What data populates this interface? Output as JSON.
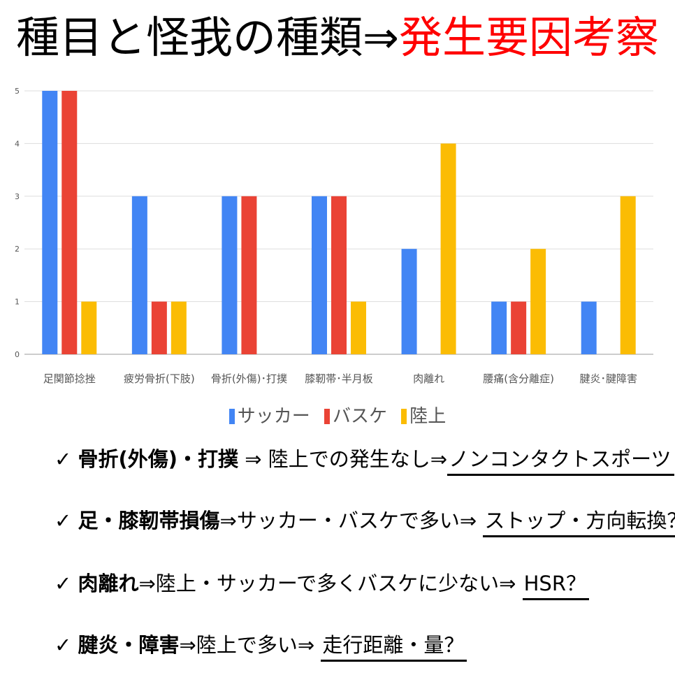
{
  "title": {
    "black": "種目と怪我の種類⇒",
    "red": "発生要因考察"
  },
  "colors": {
    "title_highlight": "#ff0000",
    "サッカー": "#4285F4",
    "バスケ": "#EA4335",
    "陸上": "#FBBC04"
  },
  "chart_data": {
    "type": "bar",
    "categories": [
      "足関節捻挫",
      "疲労骨折(下肢)",
      "骨折(外傷)･打撲",
      "膝靭帯･半月板",
      "肉離れ",
      "腰痛(含分離症)",
      "腱炎･腱障害"
    ],
    "series": [
      {
        "name": "サッカー",
        "color": "#4285F4",
        "values": [
          5,
          3,
          3,
          3,
          2,
          1,
          1
        ]
      },
      {
        "name": "バスケ",
        "color": "#EA4335",
        "values": [
          5,
          1,
          3,
          3,
          0,
          1,
          0
        ]
      },
      {
        "name": "陸上",
        "color": "#FBBC04",
        "values": [
          1,
          1,
          0,
          1,
          4,
          2,
          3
        ]
      }
    ],
    "yticks": [
      "0",
      "1",
      "2",
      "3",
      "4",
      "5"
    ],
    "ylim": [
      0,
      5
    ],
    "grid": true,
    "legend": "bottom"
  },
  "bullets": [
    {
      "check": "✓",
      "bold": "骨折(外傷)・打撲",
      "text": " ⇒ 陸上での発生なし⇒",
      "underline": "ノンコンタクトスポーツ"
    },
    {
      "check": "✓",
      "bold": "足・膝靭帯損傷",
      "text": "⇒サッカー・バスケで多い⇒ ",
      "underline": "ストップ・方向転換？"
    },
    {
      "check": "✓",
      "bold": "肉離れ",
      "text": "⇒陸上・サッカーで多くバスケに少ない⇒ ",
      "underline": "HSR？"
    },
    {
      "check": "✓",
      "bold": "腱炎・障害",
      "text": "⇒陸上で多い⇒ ",
      "underline": "走行距離・量？"
    }
  ]
}
